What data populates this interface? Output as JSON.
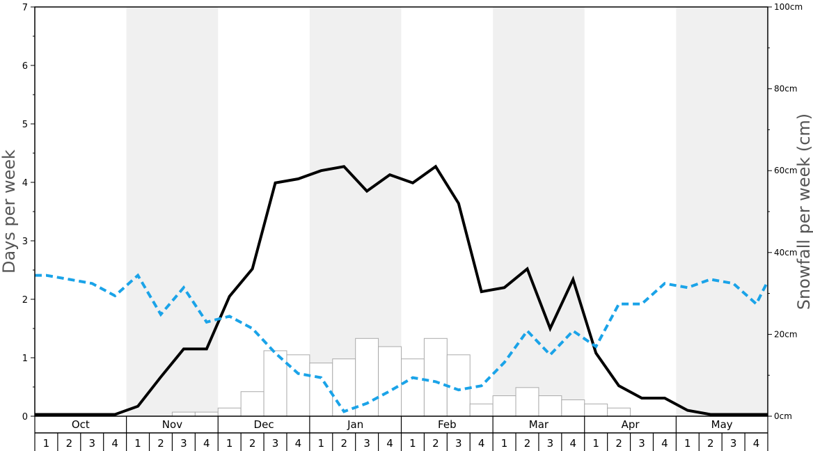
{
  "chart_data": {
    "type": "bar+line",
    "left_axis": {
      "label": "Days per week",
      "range": [
        0,
        7
      ],
      "ticks": [
        "0",
        "1",
        "2",
        "3",
        "4",
        "5",
        "6",
        "7"
      ]
    },
    "right_axis": {
      "label": "Snowfall per week (cm)",
      "range": [
        0,
        100
      ],
      "ticks": [
        "0cm",
        "20cm",
        "40cm",
        "60cm",
        "80cm",
        "100cm"
      ]
    },
    "months": [
      "Oct",
      "Nov",
      "Dec",
      "Jan",
      "Feb",
      "Mar",
      "Apr",
      "May"
    ],
    "weeks": [
      "1",
      "2",
      "3",
      "4"
    ],
    "shaded_months": [
      "Nov",
      "Jan",
      "Mar",
      "May"
    ],
    "colors": {
      "shade": "#f0f0f0",
      "days_line": "#000000",
      "temp_line": "#1aa3e8",
      "bar_fill": "#ffffff",
      "bar_stroke": "#aaaaaa"
    },
    "series": [
      {
        "kind": "bar",
        "axis": "right",
        "values": [
          0,
          0,
          0,
          0,
          0,
          0,
          1,
          1,
          2,
          6,
          16,
          15,
          13,
          14,
          19,
          17,
          14,
          19,
          15,
          3,
          5,
          7,
          5,
          4,
          3,
          2,
          0,
          0,
          0,
          0,
          0,
          0
        ]
      },
      {
        "kind": "line",
        "axis": "left",
        "values": [
          0.03,
          0.03,
          0.03,
          0.03,
          0.17,
          0.67,
          1.15,
          1.15,
          2.05,
          2.52,
          3.99,
          4.06,
          4.2,
          4.27,
          3.85,
          4.13,
          3.99,
          4.27,
          3.64,
          2.13,
          2.2,
          2.52,
          1.5,
          2.34,
          1.08,
          0.52,
          0.31,
          0.31,
          0.1,
          0.03,
          0.03,
          0.03
        ]
      },
      {
        "kind": "line-dashed",
        "axis": "left",
        "values": [
          2.41,
          2.34,
          2.27,
          2.06,
          2.41,
          1.74,
          2.2,
          1.61,
          1.71,
          1.5,
          1.08,
          0.73,
          0.66,
          0.08,
          0.22,
          0.43,
          0.66,
          0.59,
          0.45,
          0.52,
          0.92,
          1.46,
          1.05,
          1.46,
          1.19,
          1.92,
          1.92,
          2.27,
          2.2,
          2.34,
          2.27,
          1.92
        ]
      }
    ],
    "extra_dashed_end": 2.31
  }
}
